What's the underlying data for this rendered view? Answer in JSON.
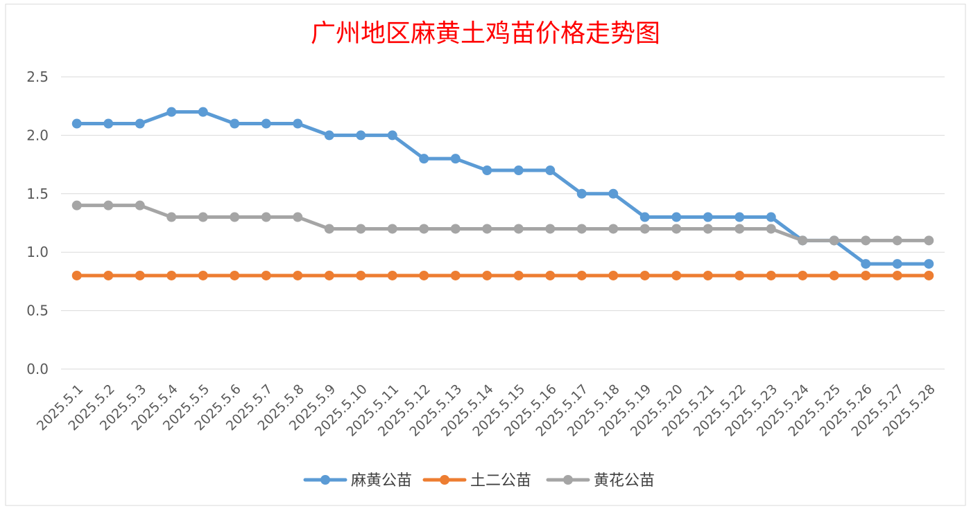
{
  "chart_data": {
    "type": "line",
    "title": "广州地区麻黄土鸡苗价格走势图",
    "title_color": "#ff0000",
    "xlabel": "",
    "ylabel": "",
    "ylim": [
      0,
      2.5
    ],
    "yticks": [
      "0.0",
      "0.5",
      "1.0",
      "1.5",
      "2.0",
      "2.5"
    ],
    "grid": true,
    "legend_position": "bottom",
    "categories": [
      "2025.5.1",
      "2025.5.2",
      "2025.5.3",
      "2025.5.4",
      "2025.5.5",
      "2025.5.6",
      "2025.5.7",
      "2025.5.8",
      "2025.5.9",
      "2025.5.10",
      "2025.5.11",
      "2025.5.12",
      "2025.5.13",
      "2025.5.14",
      "2025.5.15",
      "2025.5.16",
      "2025.5.17",
      "2025.5.18",
      "2025.5.19",
      "2025.5.20",
      "2025.5.21",
      "2025.5.22",
      "2025.5.23",
      "2025.5.24",
      "2025.5.25",
      "2025.5.26",
      "2025.5.27",
      "2025.5.28"
    ],
    "series": [
      {
        "name": "麻黄公苗",
        "color": "#5b9bd5",
        "values": [
          2.1,
          2.1,
          2.1,
          2.2,
          2.2,
          2.1,
          2.1,
          2.1,
          2.0,
          2.0,
          2.0,
          1.8,
          1.8,
          1.7,
          1.7,
          1.7,
          1.5,
          1.5,
          1.3,
          1.3,
          1.3,
          1.3,
          1.3,
          1.1,
          1.1,
          0.9,
          0.9,
          0.9
        ]
      },
      {
        "name": "土二公苗",
        "color": "#ed7d31",
        "values": [
          0.8,
          0.8,
          0.8,
          0.8,
          0.8,
          0.8,
          0.8,
          0.8,
          0.8,
          0.8,
          0.8,
          0.8,
          0.8,
          0.8,
          0.8,
          0.8,
          0.8,
          0.8,
          0.8,
          0.8,
          0.8,
          0.8,
          0.8,
          0.8,
          0.8,
          0.8,
          0.8,
          0.8
        ]
      },
      {
        "name": "黄花公苗",
        "color": "#a5a5a5",
        "values": [
          1.4,
          1.4,
          1.4,
          1.3,
          1.3,
          1.3,
          1.3,
          1.3,
          1.2,
          1.2,
          1.2,
          1.2,
          1.2,
          1.2,
          1.2,
          1.2,
          1.2,
          1.2,
          1.2,
          1.2,
          1.2,
          1.2,
          1.2,
          1.1,
          1.1,
          1.1,
          1.1,
          1.1
        ]
      }
    ]
  }
}
